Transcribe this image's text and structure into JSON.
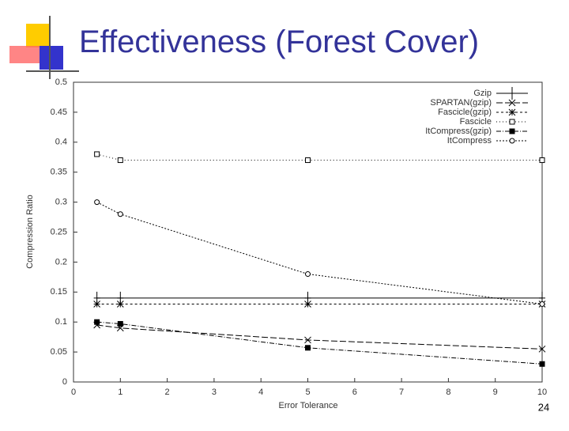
{
  "chart_data": {
    "type": "line",
    "title": "Effectiveness (Forest Cover)",
    "xlabel": "Error Tolerance",
    "ylabel": "Compression Ratio",
    "x": [
      0.5,
      1,
      5,
      10
    ],
    "series": [
      {
        "name": "Gzip",
        "color": "#000000",
        "marker": "plus",
        "dash": "",
        "values": [
          0.14,
          0.14,
          0.14,
          0.14
        ]
      },
      {
        "name": "SPARTAN(gzip)",
        "color": "#000000",
        "marker": "cross",
        "dash": "8 3",
        "values": [
          0.095,
          0.09,
          0.07,
          0.055
        ]
      },
      {
        "name": "Fascicle(gzip)",
        "color": "#000000",
        "marker": "star",
        "dash": "3 3",
        "values": [
          0.13,
          0.13,
          0.13,
          0.13
        ]
      },
      {
        "name": "Fascicle",
        "color": "#000000",
        "marker": "square",
        "dash": "1 3",
        "values": [
          0.38,
          0.37,
          0.37,
          0.37
        ]
      },
      {
        "name": "ItCompress(gzip)",
        "color": "#000000",
        "marker": "filled-square",
        "dash": "6 2 1 2",
        "values": [
          0.1,
          0.097,
          0.057,
          0.03
        ]
      },
      {
        "name": "ItCompress",
        "color": "#000000",
        "marker": "circle",
        "dash": "2 2",
        "values": [
          0.3,
          0.28,
          0.18,
          0.13
        ]
      }
    ],
    "xlim": [
      0,
      10
    ],
    "xticks": [
      0,
      1,
      2,
      3,
      4,
      5,
      6,
      7,
      8,
      9,
      10
    ],
    "ylim": [
      0,
      0.5
    ],
    "yticks": [
      0,
      0.05,
      0.1,
      0.15,
      0.2,
      0.25,
      0.3,
      0.35,
      0.4,
      0.45,
      0.5
    ],
    "legend": "upper-right"
  },
  "page_number": "24"
}
